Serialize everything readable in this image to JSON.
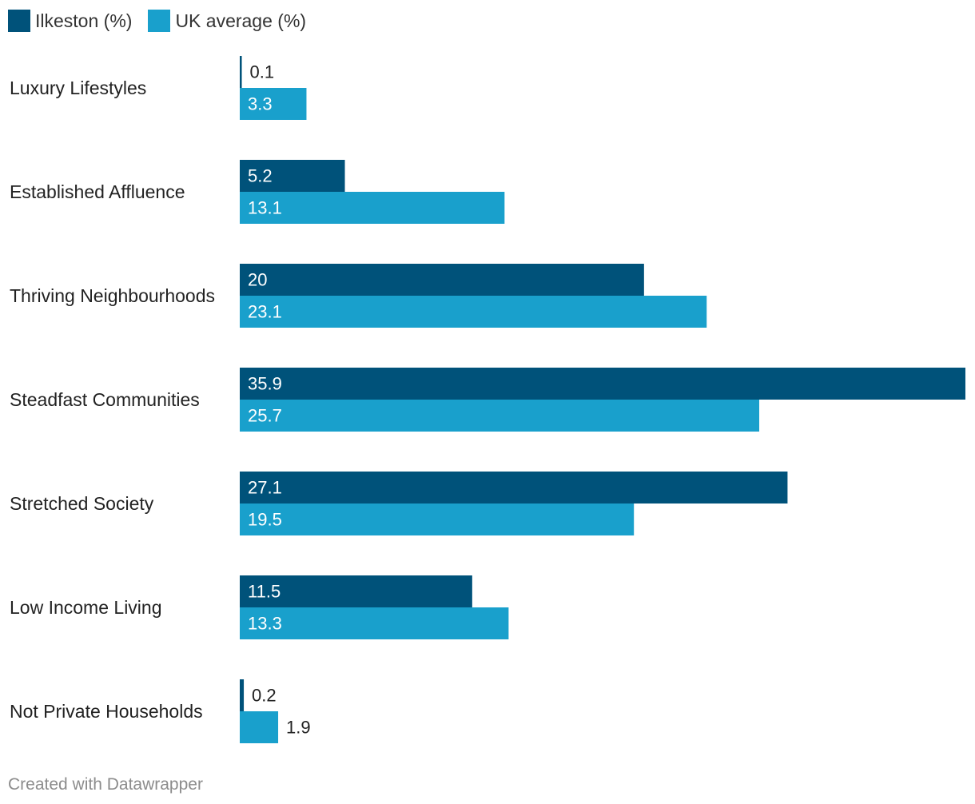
{
  "chart_data": {
    "type": "bar",
    "orientation": "horizontal",
    "title": "",
    "xlabel": "",
    "ylabel": "",
    "xlim": [
      0,
      35.9
    ],
    "grid": false,
    "legend_position": "top-left",
    "categories": [
      "Luxury Lifestyles",
      "Established Affluence",
      "Thriving Neighbourhoods",
      "Steadfast Communities",
      "Stretched Society",
      "Low Income Living",
      "Not Private Households"
    ],
    "series": [
      {
        "name": "Ilkeston (%)",
        "color": "#00527a",
        "values": [
          0.1,
          5.2,
          20,
          35.9,
          27.1,
          11.5,
          0.2
        ],
        "labels": [
          "0.1",
          "5.2",
          "20",
          "35.9",
          "27.1",
          "11.5",
          "0.2"
        ]
      },
      {
        "name": "UK average (%)",
        "color": "#19a0cc",
        "values": [
          3.3,
          13.1,
          23.1,
          25.7,
          19.5,
          13.3,
          1.9
        ],
        "labels": [
          "3.3",
          "13.1",
          "23.1",
          "25.7",
          "19.5",
          "13.3",
          "1.9"
        ]
      }
    ]
  },
  "footer": {
    "credit": "Created with Datawrapper"
  }
}
